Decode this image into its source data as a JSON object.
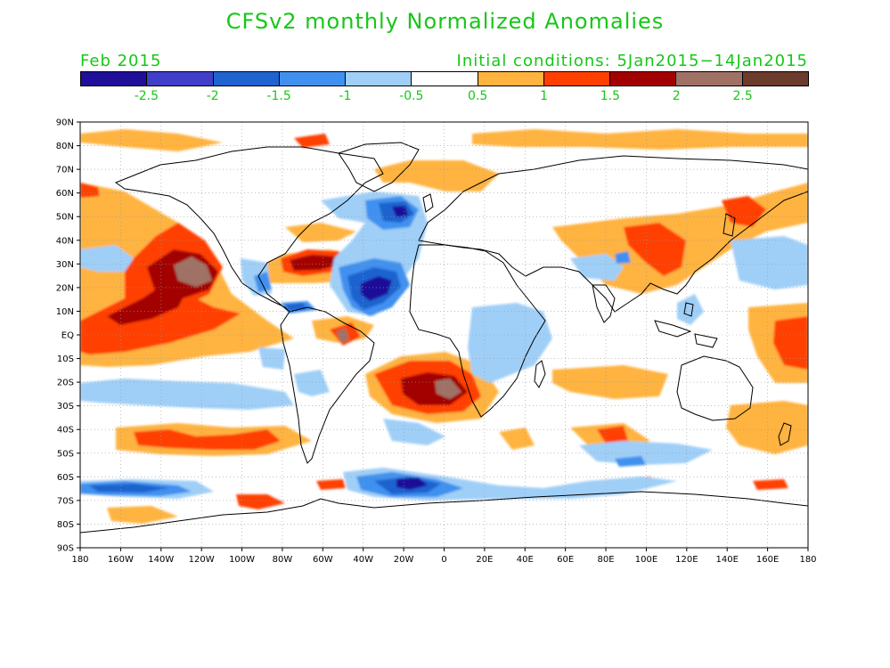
{
  "title": "CFSv2 monthly Normalized Anomalies",
  "subtitle_left": "Feb 2015",
  "subtitle_right": "Initial conditions: 5Jan2015−14Jan2015",
  "colorbar": {
    "colors": [
      "#1f0f99",
      "#3f3fc9",
      "#1f63cf",
      "#3f90ef",
      "#9fcff7",
      "#ffffff",
      "#ffb33f",
      "#ff3f00",
      "#a30000",
      "#9f7265",
      "#6b3b2d"
    ],
    "labels": [
      "-2.5",
      "-2",
      "-1.5",
      "-1",
      "-0.5",
      "0.5",
      "1",
      "1.5",
      "2",
      "2.5"
    ]
  },
  "map": {
    "lon_labels": [
      "180",
      "160W",
      "140W",
      "120W",
      "100W",
      "80W",
      "60W",
      "40W",
      "20W",
      "0",
      "20E",
      "40E",
      "60E",
      "80E",
      "100E",
      "120E",
      "140E",
      "160E",
      "180"
    ],
    "lat_labels": [
      "90N",
      "80N",
      "70N",
      "60N",
      "50N",
      "40N",
      "30N",
      "20N",
      "10N",
      "EQ",
      "10S",
      "20S",
      "30S",
      "40S",
      "50S",
      "60S",
      "70S",
      "80S",
      "90S"
    ]
  }
}
